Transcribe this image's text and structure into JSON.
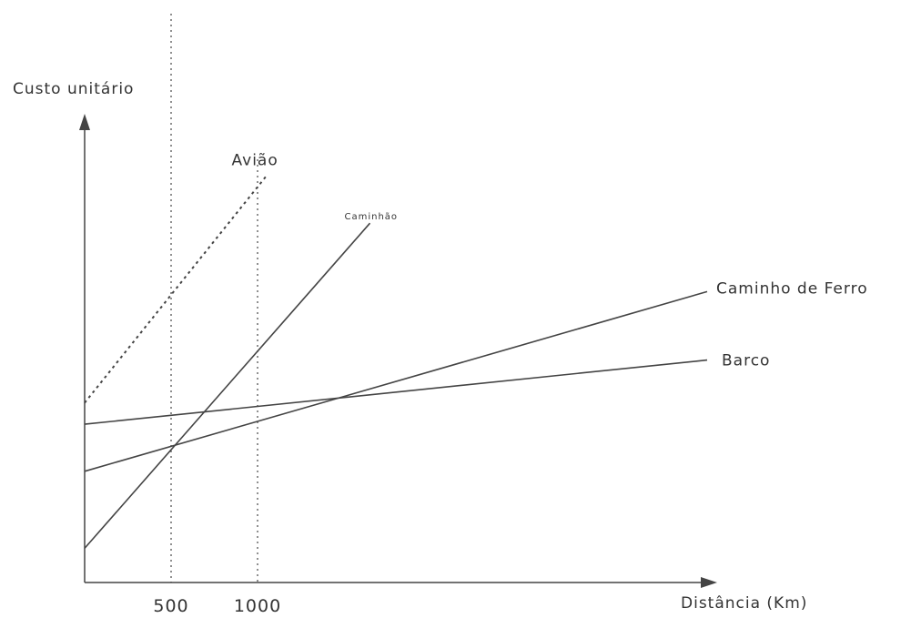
{
  "chart_data": {
    "type": "line",
    "title": "Custo unitário",
    "xlabel": "Distância (Km)",
    "ylabel": "",
    "x_ticks": [
      500,
      1000
    ],
    "xlim": [
      0,
      3600
    ],
    "ylim": [
      0,
      100
    ],
    "grid": false,
    "legend": "inline labels at line ends",
    "reference_lines_x": [
      500,
      1000
    ],
    "series": [
      {
        "name": "Avião",
        "style": "dotted",
        "x": [
          0,
          1050
        ],
        "y": [
          42,
          95
        ]
      },
      {
        "name": "Caminhão",
        "style": "solid",
        "x": [
          0,
          1650
        ],
        "y": [
          8,
          84
        ]
      },
      {
        "name": "Caminho de Ferro",
        "style": "solid",
        "x": [
          0,
          3600
        ],
        "y": [
          26,
          68
        ]
      },
      {
        "name": "Barco",
        "style": "solid",
        "x": [
          0,
          3600
        ],
        "y": [
          37,
          52
        ]
      }
    ]
  }
}
